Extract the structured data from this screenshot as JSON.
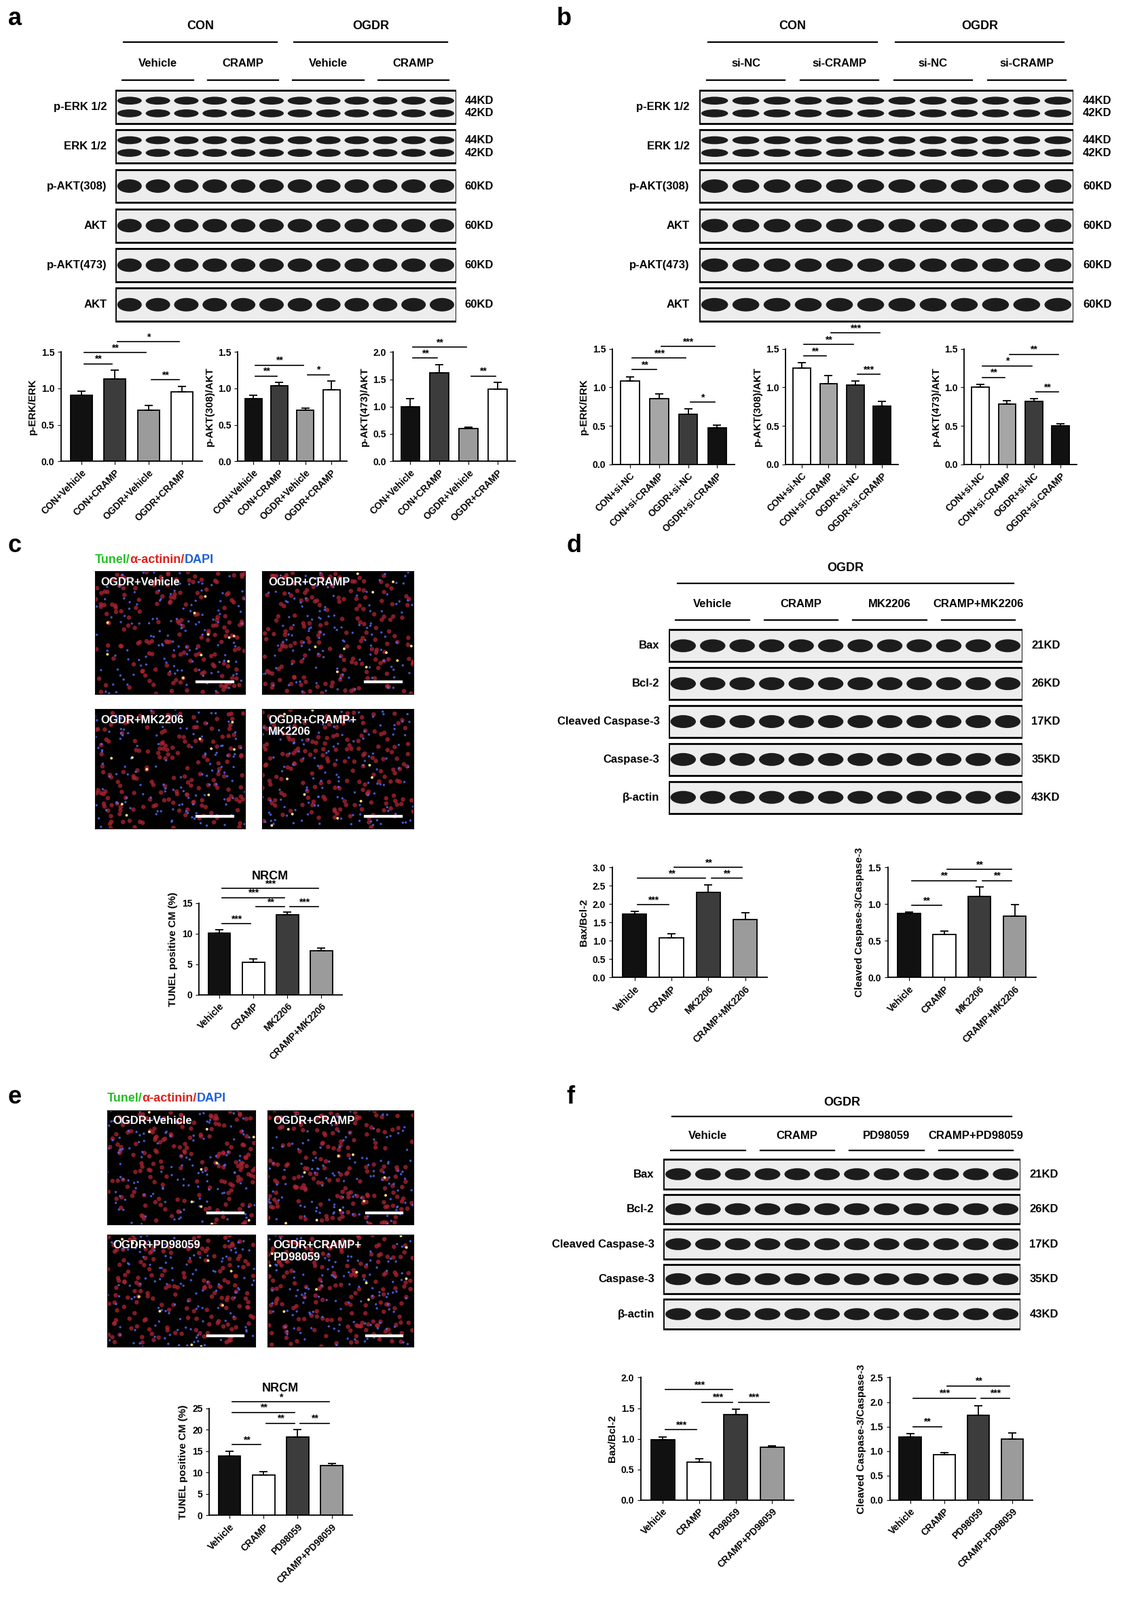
{
  "panel_labels": [
    "a",
    "b",
    "c",
    "d",
    "e",
    "f"
  ],
  "blots": [
    {
      "groups": [
        "CON",
        "OGDR"
      ],
      "subgroups": [
        "Vehicle",
        "CRAMP",
        "Vehicle",
        "CRAMP"
      ],
      "rows": [
        {
          "label": "p-ERK 1/2",
          "sizes": [
            "44KD",
            "42KD"
          ]
        },
        {
          "label": "ERK 1/2",
          "sizes": [
            "44KD",
            "42KD"
          ]
        },
        {
          "label": "p-AKT(308)",
          "sizes": [
            "60KD"
          ]
        },
        {
          "label": "AKT",
          "sizes": [
            "60KD"
          ]
        },
        {
          "label": "p-AKT(473)",
          "sizes": [
            "60KD"
          ]
        },
        {
          "label": "AKT",
          "sizes": [
            "60KD"
          ]
        }
      ]
    },
    {
      "groups": [
        "CON",
        "OGDR"
      ],
      "subgroups": [
        "si-NC",
        "si-CRAMP",
        "si-NC",
        "si-CRAMP"
      ],
      "rows": [
        {
          "label": "p-ERK 1/2",
          "sizes": [
            "44KD",
            "42KD"
          ]
        },
        {
          "label": "ERK 1/2",
          "sizes": [
            "44KD",
            "42KD"
          ]
        },
        {
          "label": "p-AKT(308)",
          "sizes": [
            "60KD"
          ]
        },
        {
          "label": "AKT",
          "sizes": [
            "60KD"
          ]
        },
        {
          "label": "p-AKT(473)",
          "sizes": [
            "60KD"
          ]
        },
        {
          "label": "AKT",
          "sizes": [
            "60KD"
          ]
        }
      ]
    },
    {
      "groups": [
        "OGDR"
      ],
      "subgroups": [
        "Vehicle",
        "CRAMP",
        "MK2206",
        "CRAMP+MK2206"
      ],
      "rows": [
        {
          "label": "Bax",
          "sizes": [
            "21KD"
          ]
        },
        {
          "label": "Bcl-2",
          "sizes": [
            "26KD"
          ]
        },
        {
          "label": "Cleaved Caspase-3",
          "sizes": [
            "17KD"
          ]
        },
        {
          "label": "Caspase-3",
          "sizes": [
            "35KD"
          ]
        },
        {
          "label": "β-actin",
          "sizes": [
            "43KD"
          ]
        }
      ]
    },
    {
      "groups": [
        "OGDR"
      ],
      "subgroups": [
        "Vehicle",
        "CRAMP",
        "PD98059",
        "CRAMP+PD98059"
      ],
      "rows": [
        {
          "label": "Bax",
          "sizes": [
            "21KD"
          ]
        },
        {
          "label": "Bcl-2",
          "sizes": [
            "26KD"
          ]
        },
        {
          "label": "Cleaved Caspase-3",
          "sizes": [
            "17KD"
          ]
        },
        {
          "label": "Caspase-3",
          "sizes": [
            "35KD"
          ]
        },
        {
          "label": "β-actin",
          "sizes": [
            "43KD"
          ]
        }
      ]
    }
  ],
  "images": [
    {
      "stain_title": [
        {
          "text": "Tunel/",
          "color": "#22c022"
        },
        {
          "text": "α-actinin/",
          "color": "#e0201b"
        },
        {
          "text": "DAPI",
          "color": "#1f5fd6"
        }
      ],
      "labels": [
        "OGDR+Vehicle",
        "OGDR+CRAMP",
        "OGDR+MK2206",
        "OGDR+CRAMP+\nMK2206"
      ]
    },
    {
      "stain_title": [
        {
          "text": "Tunel/",
          "color": "#22c022"
        },
        {
          "text": "α-actinin/",
          "color": "#e0201b"
        },
        {
          "text": "DAPI",
          "color": "#1f5fd6"
        }
      ],
      "labels": [
        "OGDR+Vehicle",
        "OGDR+CRAMP",
        "OGDR+PD98059",
        "OGDR+CRAMP+\nPD98059"
      ]
    }
  ],
  "chart_data": [
    {
      "type": "bar",
      "y_label": "p-ERK/ERK",
      "categories": [
        "CON+Vehicle",
        "CON+CRAMP",
        "OGDR+Vehicle",
        "OGDR+CRAMP"
      ],
      "values": [
        0.91,
        1.13,
        0.7,
        0.95
      ],
      "errors": [
        0.05,
        0.12,
        0.07,
        0.08
      ],
      "colors": [
        "#111111",
        "#3c3c3c",
        "#9b9b9b",
        "#ffffff"
      ],
      "ylim": [
        0,
        1.5
      ],
      "yticks": [
        {
          "value": 0,
          "label": "0.0"
        },
        {
          "value": 0.5,
          "label": "0.5"
        },
        {
          "value": 1.0,
          "label": "1.0"
        },
        {
          "value": 1.5,
          "label": "1.5"
        }
      ],
      "annotations": [
        {
          "from": "CON+Vehicle",
          "to": "OGDR+Vehicle",
          "text": "**"
        },
        {
          "from": "CON+Vehicle",
          "to": "CON+CRAMP",
          "text": "**"
        },
        {
          "from": "CON+CRAMP",
          "to": "OGDR+CRAMP",
          "text": "*"
        },
        {
          "from": "OGDR+Vehicle",
          "to": "OGDR+CRAMP",
          "text": "**"
        }
      ]
    },
    {
      "type": "bar",
      "y_label": "p-AKT(308)/AKT",
      "categories": [
        "CON+Vehicle",
        "CON+CRAMP",
        "OGDR+Vehicle",
        "OGDR+CRAMP"
      ],
      "values": [
        0.86,
        1.04,
        0.7,
        0.98
      ],
      "errors": [
        0.05,
        0.04,
        0.03,
        0.12
      ],
      "colors": [
        "#111111",
        "#3c3c3c",
        "#9b9b9b",
        "#ffffff"
      ],
      "ylim": [
        0,
        1.5
      ],
      "yticks": [
        {
          "value": 0,
          "label": "0.0"
        },
        {
          "value": 0.5,
          "label": "0.5"
        },
        {
          "value": 1.0,
          "label": "1.0"
        },
        {
          "value": 1.5,
          "label": "1.5"
        }
      ],
      "annotations": [
        {
          "from": "CON+Vehicle",
          "to": "OGDR+Vehicle",
          "text": "**"
        },
        {
          "from": "CON+Vehicle",
          "to": "CON+CRAMP",
          "text": "**"
        },
        {
          "from": "OGDR+Vehicle",
          "to": "OGDR+CRAMP",
          "text": "*"
        }
      ]
    },
    {
      "type": "bar",
      "y_label": "p-AKT(473)/AKT",
      "categories": [
        "CON+Vehicle",
        "CON+CRAMP",
        "OGDR+Vehicle",
        "OGDR+CRAMP"
      ],
      "values": [
        1.0,
        1.62,
        0.6,
        1.32
      ],
      "errors": [
        0.15,
        0.15,
        0.02,
        0.12
      ],
      "colors": [
        "#111111",
        "#3c3c3c",
        "#9b9b9b",
        "#ffffff"
      ],
      "ylim": [
        0,
        2.0
      ],
      "yticks": [
        {
          "value": 0,
          "label": "0.0"
        },
        {
          "value": 0.5,
          "label": "0.5"
        },
        {
          "value": 1.0,
          "label": "1.0"
        },
        {
          "value": 1.5,
          "label": "1.5"
        },
        {
          "value": 2.0,
          "label": "2.0"
        }
      ],
      "annotations": [
        {
          "from": "CON+Vehicle",
          "to": "OGDR+Vehicle",
          "text": "**"
        },
        {
          "from": "CON+Vehicle",
          "to": "CON+CRAMP",
          "text": "**"
        },
        {
          "from": "OGDR+Vehicle",
          "to": "OGDR+CRAMP",
          "text": "**"
        }
      ]
    },
    {
      "type": "bar",
      "y_label": "p-ERK/ERK",
      "categories": [
        "CON+si-NC",
        "CON+si-CRAMP",
        "OGDR+si-NC",
        "OGDR+si-CRAMP"
      ],
      "values": [
        1.08,
        0.85,
        0.65,
        0.47
      ],
      "errors": [
        0.06,
        0.07,
        0.07,
        0.04
      ],
      "colors": [
        "#ffffff",
        "#a6a6a6",
        "#3c3c3c",
        "#111111"
      ],
      "ylim": [
        0,
        1.5
      ],
      "yticks": [
        {
          "value": 0,
          "label": "0.0"
        },
        {
          "value": 0.5,
          "label": "0.5"
        },
        {
          "value": 1.0,
          "label": "1.0"
        },
        {
          "value": 1.5,
          "label": "1.5"
        }
      ],
      "annotations": [
        {
          "from": "CON+si-NC",
          "to": "OGDR+si-NC",
          "text": "***"
        },
        {
          "from": "CON+si-NC",
          "to": "CON+si-CRAMP",
          "text": "**"
        },
        {
          "from": "CON+si-CRAMP",
          "to": "OGDR+si-CRAMP",
          "text": "***"
        },
        {
          "from": "OGDR+si-NC",
          "to": "OGDR+si-CRAMP",
          "text": "*"
        }
      ]
    },
    {
      "type": "bar",
      "y_label": "p-AKT(308)/AKT",
      "categories": [
        "CON+si-NC",
        "CON+si-CRAMP",
        "OGDR+si-NC",
        "OGDR+si-CRAMP"
      ],
      "values": [
        1.25,
        1.05,
        1.03,
        0.76
      ],
      "errors": [
        0.07,
        0.1,
        0.05,
        0.06
      ],
      "colors": [
        "#ffffff",
        "#a6a6a6",
        "#3c3c3c",
        "#111111"
      ],
      "ylim": [
        0,
        1.5
      ],
      "yticks": [
        {
          "value": 0,
          "label": "0.0"
        },
        {
          "value": 0.5,
          "label": "0.5"
        },
        {
          "value": 1.0,
          "label": "1.0"
        },
        {
          "value": 1.5,
          "label": "1.5"
        }
      ],
      "annotations": [
        {
          "from": "CON+si-NC",
          "to": "OGDR+si-NC",
          "text": "**"
        },
        {
          "from": "CON+si-NC",
          "to": "CON+si-CRAMP",
          "text": "**"
        },
        {
          "from": "CON+si-CRAMP",
          "to": "OGDR+si-CRAMP",
          "text": "***"
        },
        {
          "from": "OGDR+si-NC",
          "to": "OGDR+si-CRAMP",
          "text": "***"
        }
      ]
    },
    {
      "type": "bar",
      "y_label": "p-AKT(473)/AKT",
      "categories": [
        "CON+si-NC",
        "CON+si-CRAMP",
        "OGDR+si-NC",
        "OGDR+si-CRAMP"
      ],
      "values": [
        1.0,
        0.78,
        0.82,
        0.5
      ],
      "errors": [
        0.04,
        0.05,
        0.03,
        0.03
      ],
      "colors": [
        "#ffffff",
        "#a6a6a6",
        "#3c3c3c",
        "#111111"
      ],
      "ylim": [
        0,
        1.5
      ],
      "yticks": [
        {
          "value": 0,
          "label": "0.0"
        },
        {
          "value": 0.5,
          "label": "0.5"
        },
        {
          "value": 1.0,
          "label": "1.0"
        },
        {
          "value": 1.5,
          "label": "1.5"
        }
      ],
      "annotations": [
        {
          "from": "CON+si-NC",
          "to": "OGDR+si-NC",
          "text": "*"
        },
        {
          "from": "CON+si-NC",
          "to": "CON+si-CRAMP",
          "text": "**"
        },
        {
          "from": "CON+si-CRAMP",
          "to": "OGDR+si-CRAMP",
          "text": "**"
        },
        {
          "from": "OGDR+si-NC",
          "to": "OGDR+si-CRAMP",
          "text": "**"
        }
      ]
    },
    {
      "type": "bar",
      "title": "NRCM",
      "y_label": "TUNEL positive CM (%)",
      "categories": [
        "Vehicle",
        "CRAMP",
        "MK2206",
        "CRAMP+MK2206"
      ],
      "values": [
        10.1,
        5.3,
        13.1,
        7.2
      ],
      "errors": [
        0.6,
        0.6,
        0.4,
        0.5
      ],
      "colors": [
        "#111111",
        "#ffffff",
        "#3c3c3c",
        "#9b9b9b"
      ],
      "ylim": [
        0,
        15
      ],
      "yticks": [
        0,
        5,
        10,
        15
      ],
      "annotations": [
        {
          "from": "Vehicle",
          "to": "CRAMP+MK2206",
          "text": "***"
        },
        {
          "from": "Vehicle",
          "to": "MK2206",
          "text": "***"
        },
        {
          "from": "CRAMP",
          "to": "MK2206",
          "text": "**"
        },
        {
          "from": "MK2206",
          "to": "CRAMP+MK2206",
          "text": "***"
        },
        {
          "from": "Vehicle",
          "to": "CRAMP",
          "text": "***"
        }
      ]
    },
    {
      "type": "bar",
      "y_label": "Bax/Bcl-2",
      "categories": [
        "Vehicle",
        "CRAMP",
        "MK2206",
        "CRAMP+MK2206"
      ],
      "values": [
        1.72,
        1.08,
        2.32,
        1.58
      ],
      "errors": [
        0.08,
        0.12,
        0.2,
        0.18
      ],
      "colors": [
        "#111111",
        "#ffffff",
        "#3c3c3c",
        "#9b9b9b"
      ],
      "ylim": [
        0,
        3.0
      ],
      "yticks": [
        {
          "value": 0,
          "label": "0.0"
        },
        {
          "value": 0.5,
          "label": "0.5"
        },
        {
          "value": 1.0,
          "label": "1.0"
        },
        {
          "value": 1.5,
          "label": "1.5"
        },
        {
          "value": 2.0,
          "label": "2.0"
        },
        {
          "value": 2.5,
          "label": "2.5"
        },
        {
          "value": 3.0,
          "label": "3.0"
        }
      ],
      "annotations": [
        {
          "from": "CRAMP",
          "to": "CRAMP+MK2206",
          "text": "**"
        },
        {
          "from": "Vehicle",
          "to": "MK2206",
          "text": "**"
        },
        {
          "from": "MK2206",
          "to": "CRAMP+MK2206",
          "text": "**"
        },
        {
          "from": "Vehicle",
          "to": "CRAMP",
          "text": "***"
        }
      ]
    },
    {
      "type": "bar",
      "y_label": "Cleaved Caspase-3/Caspase-3",
      "categories": [
        "Vehicle",
        "CRAMP",
        "MK2206",
        "CRAMP+MK2206"
      ],
      "values": [
        0.87,
        0.59,
        1.1,
        0.84
      ],
      "errors": [
        0.02,
        0.04,
        0.13,
        0.15
      ],
      "colors": [
        "#111111",
        "#ffffff",
        "#3c3c3c",
        "#9b9b9b"
      ],
      "ylim": [
        0,
        1.5
      ],
      "yticks": [
        {
          "value": 0,
          "label": "0.0"
        },
        {
          "value": 0.5,
          "label": "0.5"
        },
        {
          "value": 1.0,
          "label": "1.0"
        },
        {
          "value": 1.5,
          "label": "1.5"
        }
      ],
      "annotations": [
        {
          "from": "CRAMP",
          "to": "CRAMP+MK2206",
          "text": "**"
        },
        {
          "from": "Vehicle",
          "to": "MK2206",
          "text": "**"
        },
        {
          "from": "MK2206",
          "to": "CRAMP+MK2206",
          "text": "**"
        },
        {
          "from": "Vehicle",
          "to": "CRAMP",
          "text": "**"
        }
      ]
    },
    {
      "type": "bar",
      "title": "NRCM",
      "y_label": "TUNEL positive CM (%)",
      "categories": [
        "Vehicle",
        "CRAMP",
        "PD98059",
        "CRAMP+PD98059"
      ],
      "values": [
        13.8,
        9.4,
        18.2,
        11.6
      ],
      "errors": [
        1.2,
        0.8,
        1.8,
        0.5
      ],
      "colors": [
        "#111111",
        "#ffffff",
        "#3c3c3c",
        "#9b9b9b"
      ],
      "ylim": [
        0,
        25
      ],
      "yticks": [
        0,
        5,
        10,
        15,
        20,
        25
      ],
      "annotations": [
        {
          "from": "Vehicle",
          "to": "CRAMP+PD98059",
          "text": "*"
        },
        {
          "from": "CRAMP",
          "to": "PD98059",
          "text": "**"
        },
        {
          "from": "Vehicle",
          "to": "PD98059",
          "text": "**"
        },
        {
          "from": "PD98059",
          "to": "CRAMP+PD98059",
          "text": "**"
        },
        {
          "from": "Vehicle",
          "to": "CRAMP",
          "text": "**"
        }
      ]
    },
    {
      "type": "bar",
      "y_label": "Bax/Bcl-2",
      "categories": [
        "Vehicle",
        "CRAMP",
        "PD98059",
        "CRAMP+PD98059"
      ],
      "values": [
        0.98,
        0.62,
        1.4,
        0.86
      ],
      "errors": [
        0.05,
        0.05,
        0.08,
        0.02
      ],
      "colors": [
        "#111111",
        "#ffffff",
        "#3c3c3c",
        "#9b9b9b"
      ],
      "ylim": [
        0,
        2.0
      ],
      "yticks": [
        {
          "value": 0,
          "label": "0.0"
        },
        {
          "value": 0.5,
          "label": "0.5"
        },
        {
          "value": 1.0,
          "label": "1.0"
        },
        {
          "value": 1.5,
          "label": "1.5"
        },
        {
          "value": 2.0,
          "label": "2.0"
        }
      ],
      "annotations": [
        {
          "from": "CRAMP",
          "to": "PD98059",
          "text": "***"
        },
        {
          "from": "Vehicle",
          "to": "PD98059",
          "text": "***"
        },
        {
          "from": "PD98059",
          "to": "CRAMP+PD98059",
          "text": "***"
        },
        {
          "from": "Vehicle",
          "to": "CRAMP",
          "text": "***"
        }
      ]
    },
    {
      "type": "bar",
      "y_label": "Cleaved Caspase-3/Caspase-3",
      "categories": [
        "Vehicle",
        "CRAMP",
        "PD98059",
        "CRAMP+PD98059"
      ],
      "values": [
        1.28,
        0.92,
        1.73,
        1.25
      ],
      "errors": [
        0.07,
        0.05,
        0.2,
        0.12
      ],
      "colors": [
        "#111111",
        "#ffffff",
        "#3c3c3c",
        "#9b9b9b"
      ],
      "ylim": [
        0,
        2.5
      ],
      "yticks": [
        {
          "value": 0,
          "label": "0.0"
        },
        {
          "value": 0.5,
          "label": "0.5"
        },
        {
          "value": 1.0,
          "label": "1.0"
        },
        {
          "value": 1.5,
          "label": "1.5"
        },
        {
          "value": 2.0,
          "label": "2.0"
        },
        {
          "value": 2.5,
          "label": "2.5"
        }
      ],
      "annotations": [
        {
          "from": "CRAMP",
          "to": "CRAMP+PD98059",
          "text": "**"
        },
        {
          "from": "Vehicle",
          "to": "PD98059",
          "text": "***"
        },
        {
          "from": "PD98059",
          "to": "CRAMP+PD98059",
          "text": "***"
        },
        {
          "from": "Vehicle",
          "to": "CRAMP",
          "text": "**"
        }
      ]
    }
  ]
}
